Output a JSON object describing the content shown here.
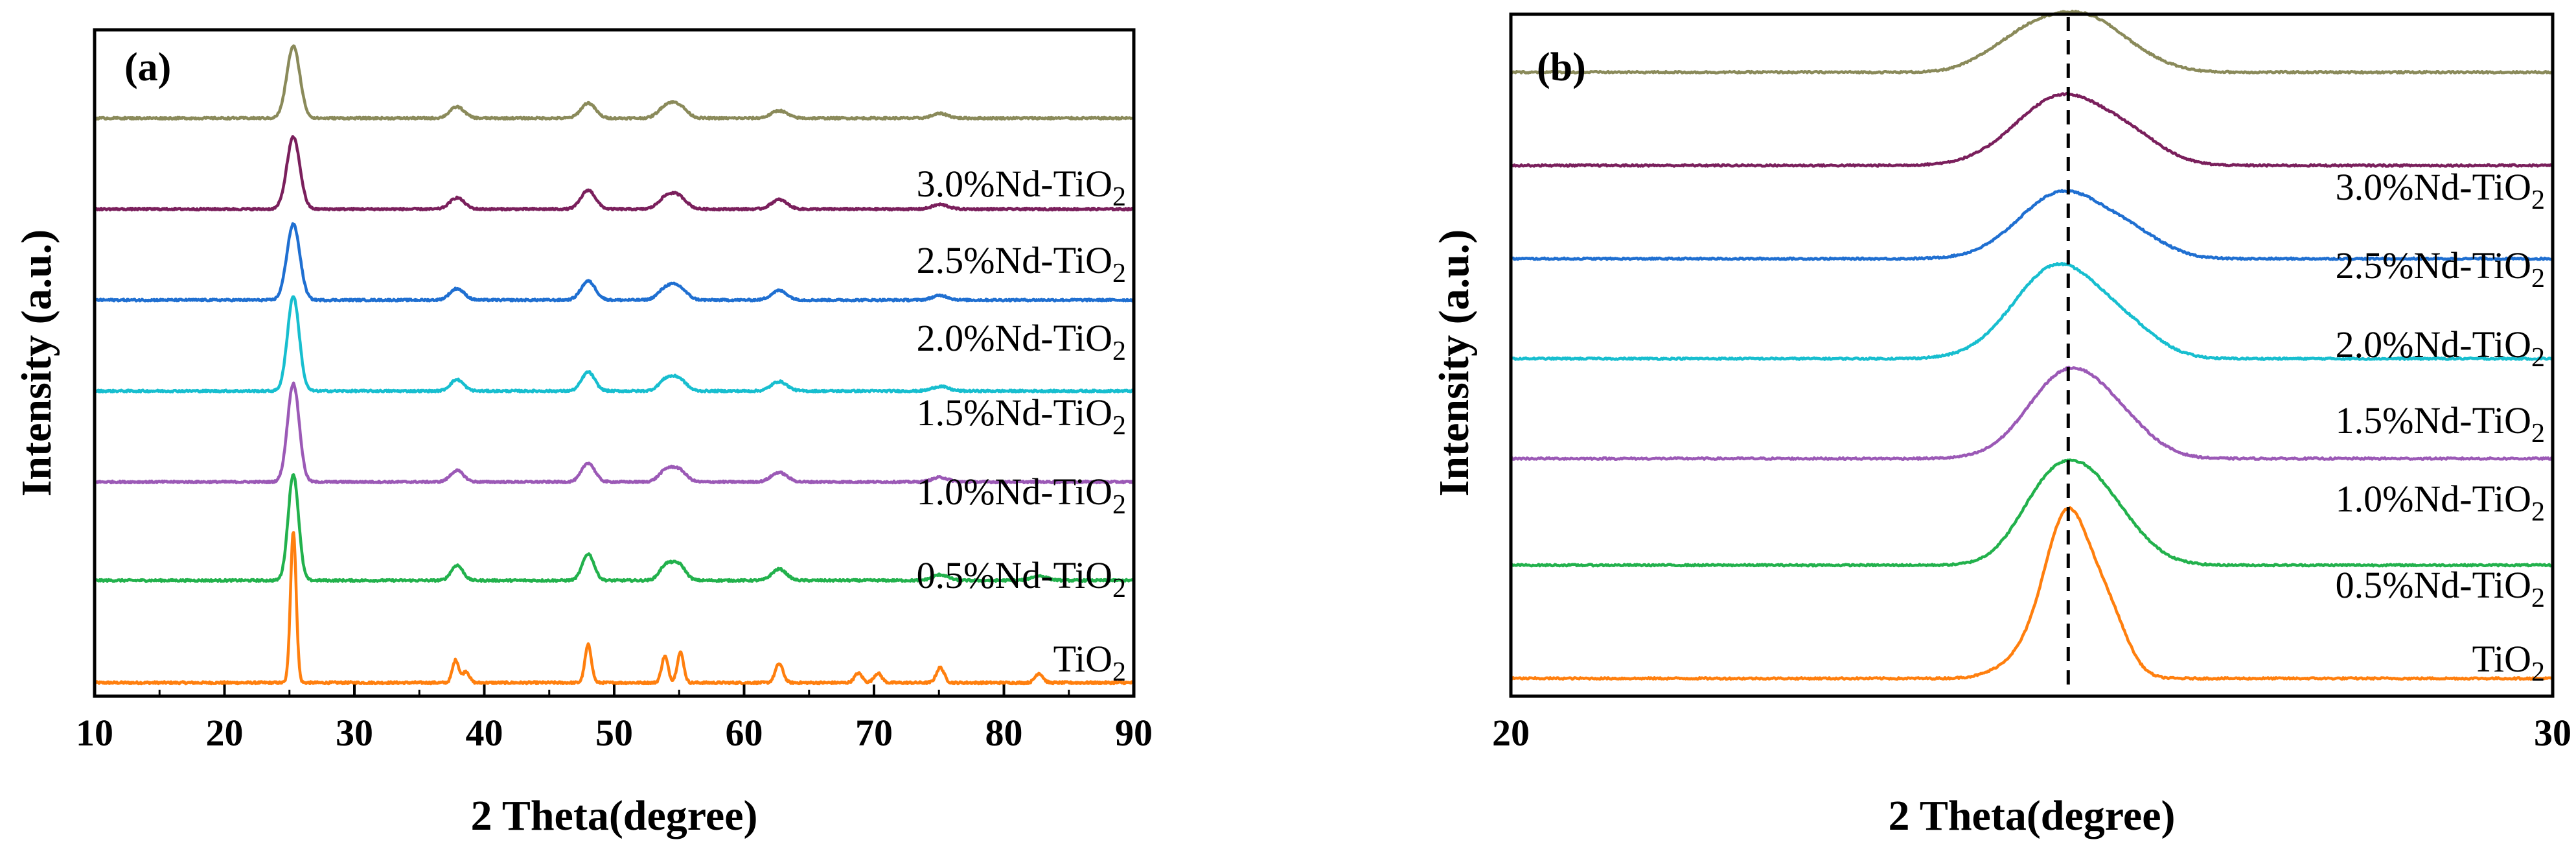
{
  "chart_data": [
    {
      "type": "line",
      "panel_label": "(a)",
      "xlabel": "2 Theta(degree)",
      "ylabel": "Intensity (a.u.)",
      "xlim": [
        10,
        90
      ],
      "x_ticks": [
        "10",
        "20",
        "30",
        "40",
        "50",
        "60",
        "70",
        "80",
        "90"
      ],
      "y_ticks_shown": false,
      "series": [
        {
          "name": "TiO2",
          "label_main": "TiO",
          "label_sub": "2",
          "color": "#ff7f0e",
          "offset": 0,
          "noise": 0.6,
          "peaks": [
            [
              25.3,
              40,
              0.22
            ],
            [
              37.8,
              6,
              0.25
            ],
            [
              38.6,
              3,
              0.25
            ],
            [
              48.0,
              10,
              0.25
            ],
            [
              53.9,
              7,
              0.25
            ],
            [
              55.1,
              8,
              0.25
            ],
            [
              62.7,
              5,
              0.3
            ],
            [
              68.8,
              2.5,
              0.3
            ],
            [
              70.3,
              2.5,
              0.3
            ],
            [
              75.1,
              4,
              0.3
            ],
            [
              82.7,
              2.5,
              0.3
            ]
          ]
        },
        {
          "name": "0.5%Nd-TiO2",
          "label_main": "0.5%Nd-TiO",
          "label_sub": "2",
          "color": "#22b14c",
          "offset": 27,
          "noise": 0.5,
          "peaks": [
            [
              25.3,
              28,
              0.4
            ],
            [
              37.9,
              4,
              0.45
            ],
            [
              48.0,
              7,
              0.45
            ],
            [
              54.0,
              4,
              0.5
            ],
            [
              55.0,
              4,
              0.5
            ],
            [
              62.7,
              3,
              0.55
            ],
            [
              75.1,
              1.5,
              0.6
            ],
            [
              82.7,
              1.2,
              0.6
            ]
          ]
        },
        {
          "name": "1.0%Nd-TiO2",
          "label_main": "1.0%Nd-TiO",
          "label_sub": "2",
          "color": "#9b59b6",
          "offset": 53,
          "noise": 0.5,
          "peaks": [
            [
              25.3,
              26,
              0.45
            ],
            [
              37.9,
              3,
              0.5
            ],
            [
              48.0,
              5,
              0.5
            ],
            [
              54.0,
              3,
              0.55
            ],
            [
              55.0,
              3,
              0.55
            ],
            [
              62.7,
              2.5,
              0.6
            ],
            [
              75.1,
              1.2,
              0.6
            ]
          ]
        },
        {
          "name": "1.5%Nd-TiO2",
          "label_main": "1.5%Nd-TiO",
          "label_sub": "2",
          "color": "#17becf",
          "offset": 77,
          "noise": 0.5,
          "peaks": [
            [
              25.3,
              25,
              0.45
            ],
            [
              37.9,
              3,
              0.5
            ],
            [
              48.0,
              5,
              0.5
            ],
            [
              54.0,
              3,
              0.55
            ],
            [
              55.0,
              3,
              0.55
            ],
            [
              62.7,
              2.5,
              0.6
            ],
            [
              75.1,
              1.2,
              0.6
            ]
          ]
        },
        {
          "name": "2.0%Nd-TiO2",
          "label_main": "2.0%Nd-TiO",
          "label_sub": "2",
          "color": "#1f6fd1",
          "offset": 101,
          "noise": 0.5,
          "peaks": [
            [
              25.3,
              20,
              0.5
            ],
            [
              37.9,
              3,
              0.55
            ],
            [
              48.0,
              5,
              0.55
            ],
            [
              54.0,
              3,
              0.6
            ],
            [
              55.0,
              3,
              0.6
            ],
            [
              62.7,
              2.5,
              0.6
            ],
            [
              75.1,
              1.2,
              0.6
            ]
          ]
        },
        {
          "name": "2.5%Nd-TiO2",
          "label_main": "2.5%Nd-TiO",
          "label_sub": "2",
          "color": "#7a1f5c",
          "offset": 125,
          "noise": 0.5,
          "peaks": [
            [
              25.3,
              19,
              0.5
            ],
            [
              37.9,
              3,
              0.55
            ],
            [
              48.0,
              5,
              0.55
            ],
            [
              54.0,
              3,
              0.6
            ],
            [
              55.0,
              3,
              0.6
            ],
            [
              62.7,
              2.5,
              0.6
            ],
            [
              75.1,
              1.2,
              0.6
            ]
          ]
        },
        {
          "name": "3.0%Nd-TiO2",
          "label_main": "3.0%Nd-TiO",
          "label_sub": "2",
          "color": "#8a8a5a",
          "offset": 149,
          "noise": 0.5,
          "peaks": [
            [
              25.3,
              19,
              0.5
            ],
            [
              37.9,
              3,
              0.55
            ],
            [
              48.0,
              4,
              0.55
            ],
            [
              54.0,
              3,
              0.6
            ],
            [
              55.0,
              3,
              0.6
            ],
            [
              62.7,
              2,
              0.6
            ],
            [
              75.1,
              1.2,
              0.6
            ]
          ]
        }
      ]
    },
    {
      "type": "line",
      "panel_label": "(b)",
      "xlabel": "2 Theta(degree)",
      "ylabel": "Intensity (a.u.)",
      "xlim": [
        20,
        30
      ],
      "x_ticks": [
        "20",
        "30"
      ],
      "reference_line_x": 25.35,
      "y_ticks_shown": false,
      "series": [
        {
          "name": "TiO2",
          "label_main": "TiO",
          "label_sub": "2",
          "color": "#ff7f0e",
          "offset": 0,
          "noise": 0.25,
          "peaks": [
            [
              25.35,
              24,
              0.22
            ],
            [
              25.75,
              8,
              0.18
            ],
            [
              24.95,
              3,
              0.25
            ]
          ]
        },
        {
          "name": "0.5%Nd-TiO2",
          "label_main": "0.5%Nd-TiO",
          "label_sub": "2",
          "color": "#22b14c",
          "offset": 17,
          "noise": 0.25,
          "peaks": [
            [
              25.15,
              10,
              0.3
            ],
            [
              25.55,
              9,
              0.3
            ],
            [
              25.9,
              3,
              0.3
            ]
          ]
        },
        {
          "name": "1.0%Nd-TiO2",
          "label_main": "1.0%Nd-TiO",
          "label_sub": "2",
          "color": "#9b59b6",
          "offset": 33,
          "noise": 0.25,
          "peaks": [
            [
              25.35,
              13,
              0.38
            ],
            [
              25.9,
              3,
              0.3
            ]
          ]
        },
        {
          "name": "1.5%Nd-TiO2",
          "label_main": "1.5%Nd-TiO",
          "label_sub": "2",
          "color": "#17becf",
          "offset": 48,
          "noise": 0.25,
          "peaks": [
            [
              25.25,
              14,
              0.42
            ],
            [
              25.95,
              3,
              0.3
            ]
          ]
        },
        {
          "name": "2.0%Nd-TiO2",
          "label_main": "2.0%Nd-TiO",
          "label_sub": "2",
          "color": "#1f6fd1",
          "offset": 63,
          "noise": 0.25,
          "peaks": [
            [
              25.3,
              10,
              0.42
            ],
            [
              26.0,
              2.5,
              0.3
            ]
          ]
        },
        {
          "name": "2.5%Nd-TiO2",
          "label_main": "2.5%Nd-TiO",
          "label_sub": "2",
          "color": "#7a1f5c",
          "offset": 77,
          "noise": 0.25,
          "peaks": [
            [
              25.3,
              10.5,
              0.45
            ],
            [
              26.0,
              2.5,
              0.3
            ]
          ]
        },
        {
          "name": "3.0%Nd-TiO2",
          "label_main": "3.0%Nd-TiO",
          "label_sub": "2",
          "color": "#8a8a5a",
          "offset": 91,
          "noise": 0.25,
          "peaks": [
            [
              25.05,
              6,
              0.3
            ],
            [
              25.55,
              6.5,
              0.3
            ],
            [
              24.6,
              1.5,
              0.25
            ],
            [
              26.0,
              2,
              0.3
            ]
          ]
        }
      ]
    }
  ]
}
